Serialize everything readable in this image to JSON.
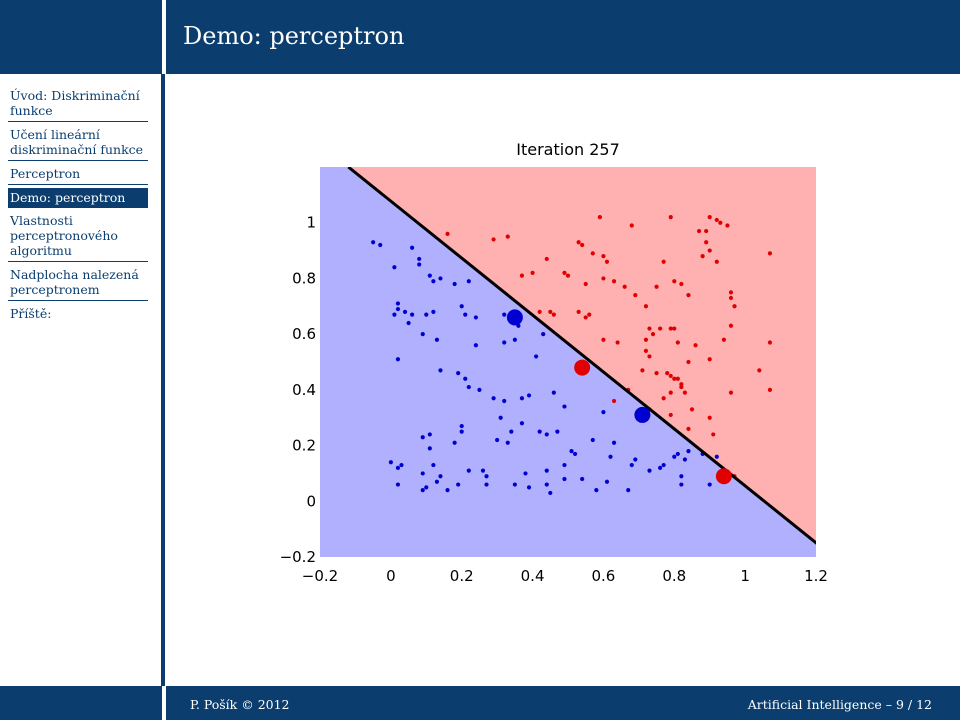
{
  "slide": {
    "title": "Demo: perceptron"
  },
  "sidebar": {
    "items": [
      {
        "label": "Úvod: Diskriminační funkce",
        "active": false
      },
      {
        "label": "Učení lineární diskriminační funkce",
        "active": false
      },
      {
        "label": "Perceptron",
        "active": false
      },
      {
        "label": "Demo: perceptron",
        "active": true
      },
      {
        "label": "Vlastnosti perceptronového algoritmu",
        "active": false
      },
      {
        "label": "Nadplocha nalezená perceptronem",
        "active": false
      },
      {
        "label": "Příště:",
        "active": false
      }
    ]
  },
  "footer": {
    "author": "P. Pošík © 2012",
    "course": "Artificial Intelligence – 9 / 12"
  },
  "colors": {
    "theme": "#0b3e6e",
    "region_red": "#ffb0b0",
    "region_blue": "#b0b0ff",
    "points_red": "#e00000",
    "points_blue": "#0000d0",
    "boundary": "#000000"
  },
  "chart_data": {
    "type": "scatter",
    "title": "Iteration 257",
    "xlabel": "",
    "ylabel": "",
    "xlim": [
      -0.2,
      1.2
    ],
    "ylim": [
      -0.2,
      1.2
    ],
    "xticks": [
      "−0.2",
      "0",
      "0.2",
      "0.4",
      "0.6",
      "0.8",
      "1",
      "1.2"
    ],
    "yticks": [
      "−0.2",
      "0",
      "0.2",
      "0.4",
      "0.6",
      "0.8",
      "1"
    ],
    "grid": false,
    "decision_boundary": {
      "x": [
        -0.12,
        1.25
      ],
      "y": [
        1.2,
        -0.2
      ]
    },
    "highlighted": [
      {
        "class": "red",
        "x": 0.54,
        "y": 0.48
      },
      {
        "class": "red",
        "x": 0.94,
        "y": 0.09
      },
      {
        "class": "blue",
        "x": 0.35,
        "y": 0.66
      },
      {
        "class": "blue",
        "x": 0.71,
        "y": 0.31
      }
    ],
    "series": [
      {
        "class": "red",
        "points": [
          [
            0.16,
            0.96
          ],
          [
            0.29,
            0.94
          ],
          [
            0.33,
            0.95
          ],
          [
            0.59,
            1.02
          ],
          [
            0.68,
            0.99
          ],
          [
            0.79,
            1.02
          ],
          [
            0.87,
            0.97
          ],
          [
            0.89,
            0.97
          ],
          [
            0.9,
            1.02
          ],
          [
            0.92,
            1.01
          ],
          [
            0.93,
            1.0
          ],
          [
            0.95,
            0.99
          ],
          [
            0.53,
            0.93
          ],
          [
            0.54,
            0.92
          ],
          [
            0.57,
            0.89
          ],
          [
            0.6,
            0.88
          ],
          [
            0.61,
            0.86
          ],
          [
            0.89,
            0.93
          ],
          [
            0.9,
            0.9
          ],
          [
            0.77,
            0.86
          ],
          [
            0.88,
            0.88
          ],
          [
            0.92,
            0.86
          ],
          [
            1.07,
            0.89
          ],
          [
            0.44,
            0.87
          ],
          [
            0.49,
            0.82
          ],
          [
            0.5,
            0.81
          ],
          [
            0.6,
            0.8
          ],
          [
            0.55,
            0.78
          ],
          [
            0.63,
            0.79
          ],
          [
            0.66,
            0.77
          ],
          [
            0.75,
            0.77
          ],
          [
            0.8,
            0.79
          ],
          [
            0.82,
            0.78
          ],
          [
            0.4,
            0.82
          ],
          [
            0.37,
            0.81
          ],
          [
            0.69,
            0.74
          ],
          [
            0.72,
            0.7
          ],
          [
            0.84,
            0.74
          ],
          [
            0.96,
            0.75
          ],
          [
            0.96,
            0.73
          ],
          [
            0.97,
            0.7
          ],
          [
            0.42,
            0.68
          ],
          [
            0.45,
            0.68
          ],
          [
            0.46,
            0.67
          ],
          [
            0.53,
            0.68
          ],
          [
            0.55,
            0.66
          ],
          [
            0.56,
            0.67
          ],
          [
            0.76,
            0.62
          ],
          [
            0.79,
            0.62
          ],
          [
            0.8,
            0.62
          ],
          [
            0.81,
            0.57
          ],
          [
            0.73,
            0.62
          ],
          [
            0.74,
            0.6
          ],
          [
            0.72,
            0.58
          ],
          [
            0.6,
            0.58
          ],
          [
            0.64,
            0.57
          ],
          [
            0.72,
            0.54
          ],
          [
            0.73,
            0.52
          ],
          [
            0.86,
            0.56
          ],
          [
            0.94,
            0.58
          ],
          [
            0.96,
            0.63
          ],
          [
            1.07,
            0.57
          ],
          [
            0.9,
            0.51
          ],
          [
            0.84,
            0.5
          ],
          [
            1.04,
            0.47
          ],
          [
            0.71,
            0.47
          ],
          [
            0.75,
            0.46
          ],
          [
            0.78,
            0.46
          ],
          [
            0.79,
            0.45
          ],
          [
            0.8,
            0.44
          ],
          [
            0.81,
            0.44
          ],
          [
            0.82,
            0.41
          ],
          [
            0.82,
            0.42
          ],
          [
            0.67,
            0.4
          ],
          [
            0.77,
            0.37
          ],
          [
            0.79,
            0.39
          ],
          [
            0.83,
            0.39
          ],
          [
            0.96,
            0.39
          ],
          [
            1.07,
            0.4
          ],
          [
            0.63,
            0.36
          ],
          [
            0.73,
            0.33
          ],
          [
            0.79,
            0.31
          ],
          [
            0.85,
            0.33
          ],
          [
            0.9,
            0.3
          ],
          [
            0.84,
            0.26
          ],
          [
            0.91,
            0.24
          ],
          [
            0.97,
            0.09
          ]
        ]
      },
      {
        "class": "blue",
        "points": [
          [
            -0.05,
            0.93
          ],
          [
            -0.03,
            0.92
          ],
          [
            0.06,
            0.91
          ],
          [
            0.08,
            0.87
          ],
          [
            0.08,
            0.85
          ],
          [
            0.01,
            0.84
          ],
          [
            0.11,
            0.81
          ],
          [
            0.12,
            0.79
          ],
          [
            0.14,
            0.8
          ],
          [
            0.18,
            0.78
          ],
          [
            0.22,
            0.79
          ],
          [
            0.02,
            0.71
          ],
          [
            0.02,
            0.69
          ],
          [
            0.01,
            0.67
          ],
          [
            0.04,
            0.68
          ],
          [
            0.06,
            0.67
          ],
          [
            0.1,
            0.67
          ],
          [
            0.12,
            0.68
          ],
          [
            0.2,
            0.7
          ],
          [
            0.21,
            0.67
          ],
          [
            0.24,
            0.66
          ],
          [
            0.32,
            0.67
          ],
          [
            0.36,
            0.63
          ],
          [
            0.43,
            0.6
          ],
          [
            0.05,
            0.64
          ],
          [
            0.09,
            0.6
          ],
          [
            0.13,
            0.58
          ],
          [
            0.24,
            0.56
          ],
          [
            0.32,
            0.57
          ],
          [
            0.35,
            0.58
          ],
          [
            0.41,
            0.52
          ],
          [
            0.02,
            0.51
          ],
          [
            0.14,
            0.47
          ],
          [
            0.19,
            0.46
          ],
          [
            0.21,
            0.44
          ],
          [
            0.22,
            0.41
          ],
          [
            0.25,
            0.4
          ],
          [
            0.29,
            0.37
          ],
          [
            0.32,
            0.36
          ],
          [
            0.37,
            0.37
          ],
          [
            0.39,
            0.38
          ],
          [
            0.46,
            0.39
          ],
          [
            0.49,
            0.34
          ],
          [
            0.6,
            0.32
          ],
          [
            0.31,
            0.3
          ],
          [
            0.37,
            0.28
          ],
          [
            0.2,
            0.25
          ],
          [
            0.2,
            0.27
          ],
          [
            0.11,
            0.24
          ],
          [
            0.09,
            0.23
          ],
          [
            0.11,
            0.19
          ],
          [
            0.12,
            0.13
          ],
          [
            0.03,
            0.13
          ],
          [
            0.18,
            0.21
          ],
          [
            0.3,
            0.22
          ],
          [
            0.33,
            0.21
          ],
          [
            0.34,
            0.25
          ],
          [
            0.42,
            0.25
          ],
          [
            0.44,
            0.24
          ],
          [
            0.47,
            0.25
          ],
          [
            0.51,
            0.18
          ],
          [
            0.52,
            0.17
          ],
          [
            0.57,
            0.22
          ],
          [
            0.63,
            0.21
          ],
          [
            0.62,
            0.16
          ],
          [
            0.69,
            0.15
          ],
          [
            0.8,
            0.16
          ],
          [
            0.81,
            0.17
          ],
          [
            0.84,
            0.18
          ],
          [
            0.77,
            0.13
          ],
          [
            0.83,
            0.15
          ],
          [
            0.92,
            0.16
          ],
          [
            0.88,
            0.17
          ],
          [
            0.0,
            0.14
          ],
          [
            0.02,
            0.12
          ],
          [
            0.09,
            0.1
          ],
          [
            0.14,
            0.09
          ],
          [
            0.22,
            0.11
          ],
          [
            0.26,
            0.11
          ],
          [
            0.27,
            0.09
          ],
          [
            0.38,
            0.1
          ],
          [
            0.44,
            0.11
          ],
          [
            0.49,
            0.13
          ],
          [
            0.49,
            0.08
          ],
          [
            0.54,
            0.08
          ],
          [
            0.61,
            0.07
          ],
          [
            0.68,
            0.13
          ],
          [
            0.73,
            0.11
          ],
          [
            0.76,
            0.12
          ],
          [
            0.82,
            0.09
          ],
          [
            0.82,
            0.06
          ],
          [
            0.02,
            0.06
          ],
          [
            0.09,
            0.04
          ],
          [
            0.13,
            0.07
          ],
          [
            0.19,
            0.06
          ],
          [
            0.27,
            0.06
          ],
          [
            0.35,
            0.06
          ],
          [
            0.39,
            0.05
          ],
          [
            0.44,
            0.06
          ],
          [
            0.45,
            0.03
          ],
          [
            0.58,
            0.04
          ],
          [
            0.67,
            0.04
          ],
          [
            0.9,
            0.06
          ],
          [
            0.1,
            0.05
          ],
          [
            0.16,
            0.04
          ]
        ]
      }
    ]
  }
}
